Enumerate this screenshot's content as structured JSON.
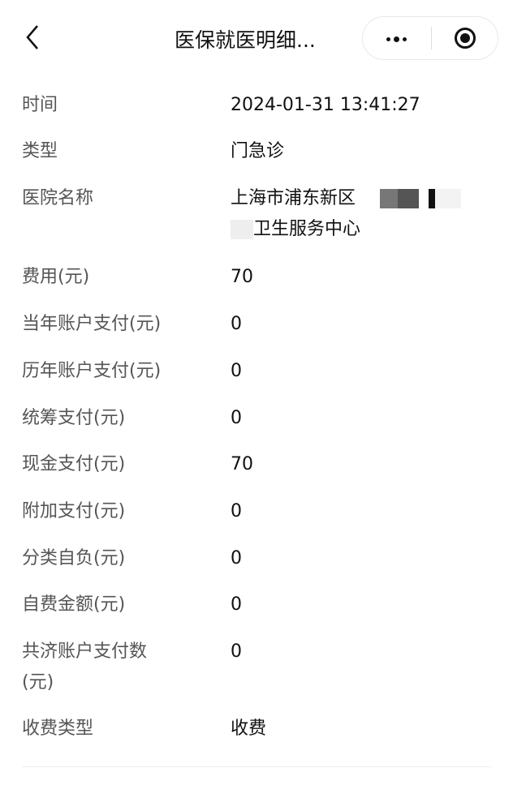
{
  "header": {
    "title": "医保就医明细...",
    "back_icon": "chevron-left-icon",
    "more_icon": "more-dots-icon",
    "close_icon": "target-circle-icon"
  },
  "details": [
    {
      "label": "时间",
      "value": "2024-01-31 13:41:27"
    },
    {
      "label": "类型",
      "value": "门急诊"
    },
    {
      "label": "医院名称",
      "value": "上海市浦东新区",
      "value_line2": "卫生服务中心"
    },
    {
      "label": "费用(元)",
      "value": "70"
    },
    {
      "label": "当年账户支付(元)",
      "value": "0"
    },
    {
      "label": "历年账户支付(元)",
      "value": "0"
    },
    {
      "label": "统筹支付(元)",
      "value": "0"
    },
    {
      "label": "现金支付(元)",
      "value": "70"
    },
    {
      "label": "附加支付(元)",
      "value": "0"
    },
    {
      "label": "分类自负(元)",
      "value": "0"
    },
    {
      "label": "自费金额(元)",
      "value": "0"
    },
    {
      "label": "共济账户支付数",
      "label_line2": "(元)",
      "value": "0"
    },
    {
      "label": "收费类型",
      "value": "收费"
    }
  ]
}
